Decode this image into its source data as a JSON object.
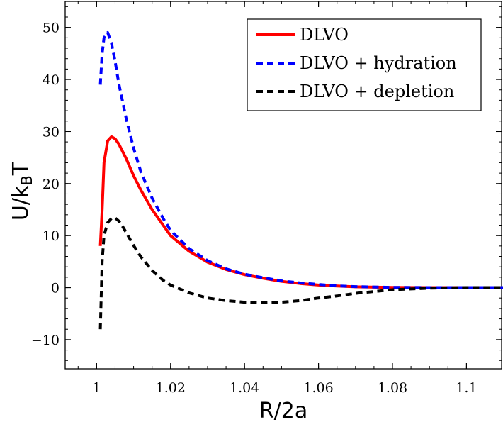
{
  "chart_data": {
    "type": "line",
    "title": "",
    "xlabel": "R/2a",
    "ylabel_main": "U/k",
    "ylabel_sub": "B",
    "ylabel_tail": "T",
    "xlim": [
      0.9915,
      1.1095
    ],
    "ylim": [
      -15.6,
      55.0
    ],
    "xticks": [
      1,
      1.02,
      1.04,
      1.06,
      1.08,
      1.1
    ],
    "xtick_labels": [
      "1",
      "1.02",
      "1.04",
      "1.06",
      "1.08",
      "1.1"
    ],
    "xminor_step": 0.005,
    "yticks": [
      -10,
      0,
      10,
      20,
      30,
      40,
      50
    ],
    "ytick_labels": [
      "−10",
      "0",
      "10",
      "20",
      "30",
      "40",
      "50"
    ],
    "yminor_step": 2,
    "grid": false,
    "legend_position": "top-right",
    "series": [
      {
        "name": "DLVO",
        "color": "#ff0000",
        "style": "solid",
        "x": [
          1.001,
          1.0015,
          1.002,
          1.003,
          1.004,
          1.005,
          1.006,
          1.008,
          1.01,
          1.012,
          1.015,
          1.018,
          1.02,
          1.025,
          1.03,
          1.035,
          1.04,
          1.045,
          1.05,
          1.055,
          1.06,
          1.065,
          1.07,
          1.08,
          1.09,
          1.1,
          1.11
        ],
        "y": [
          8,
          15,
          24,
          28.2,
          29,
          28.6,
          27.6,
          24.8,
          21.5,
          18.7,
          15,
          12,
          10,
          7,
          4.9,
          3.5,
          2.5,
          1.8,
          1.2,
          0.8,
          0.5,
          0.3,
          0.15,
          0.05,
          0,
          0,
          0
        ]
      },
      {
        "name": "DLVO + hydration",
        "color": "#0000ff",
        "style": "dashed",
        "x": [
          1.001,
          1.0015,
          1.002,
          1.003,
          1.004,
          1.005,
          1.006,
          1.008,
          1.01,
          1.012,
          1.015,
          1.018,
          1.02,
          1.025,
          1.03,
          1.035,
          1.04,
          1.045,
          1.05,
          1.055,
          1.06,
          1.065,
          1.07,
          1.08,
          1.09,
          1.1,
          1.11
        ],
        "y": [
          39,
          45,
          48,
          49,
          47,
          43.5,
          39.2,
          32.5,
          26.8,
          22.2,
          17.2,
          13.3,
          11,
          7.5,
          5.2,
          3.6,
          2.6,
          1.9,
          1.3,
          0.9,
          0.6,
          0.35,
          0.2,
          0.05,
          0,
          0,
          0
        ]
      },
      {
        "name": "DLVO + depletion",
        "color": "#000000",
        "style": "dashed",
        "x": [
          1.001,
          1.0015,
          1.002,
          1.003,
          1.004,
          1.005,
          1.006,
          1.007,
          1.008,
          1.01,
          1.012,
          1.015,
          1.018,
          1.02,
          1.025,
          1.03,
          1.035,
          1.04,
          1.045,
          1.05,
          1.055,
          1.06,
          1.065,
          1.07,
          1.08,
          1.09,
          1.1,
          1.11
        ],
        "y": [
          -8,
          5,
          10,
          12.5,
          13.3,
          13.4,
          12.8,
          11.8,
          10.6,
          8.1,
          5.9,
          3.3,
          1.4,
          0.5,
          -1,
          -2,
          -2.5,
          -2.8,
          -2.9,
          -2.8,
          -2.5,
          -2,
          -1.6,
          -1.1,
          -0.4,
          -0.1,
          0,
          0
        ]
      }
    ]
  }
}
